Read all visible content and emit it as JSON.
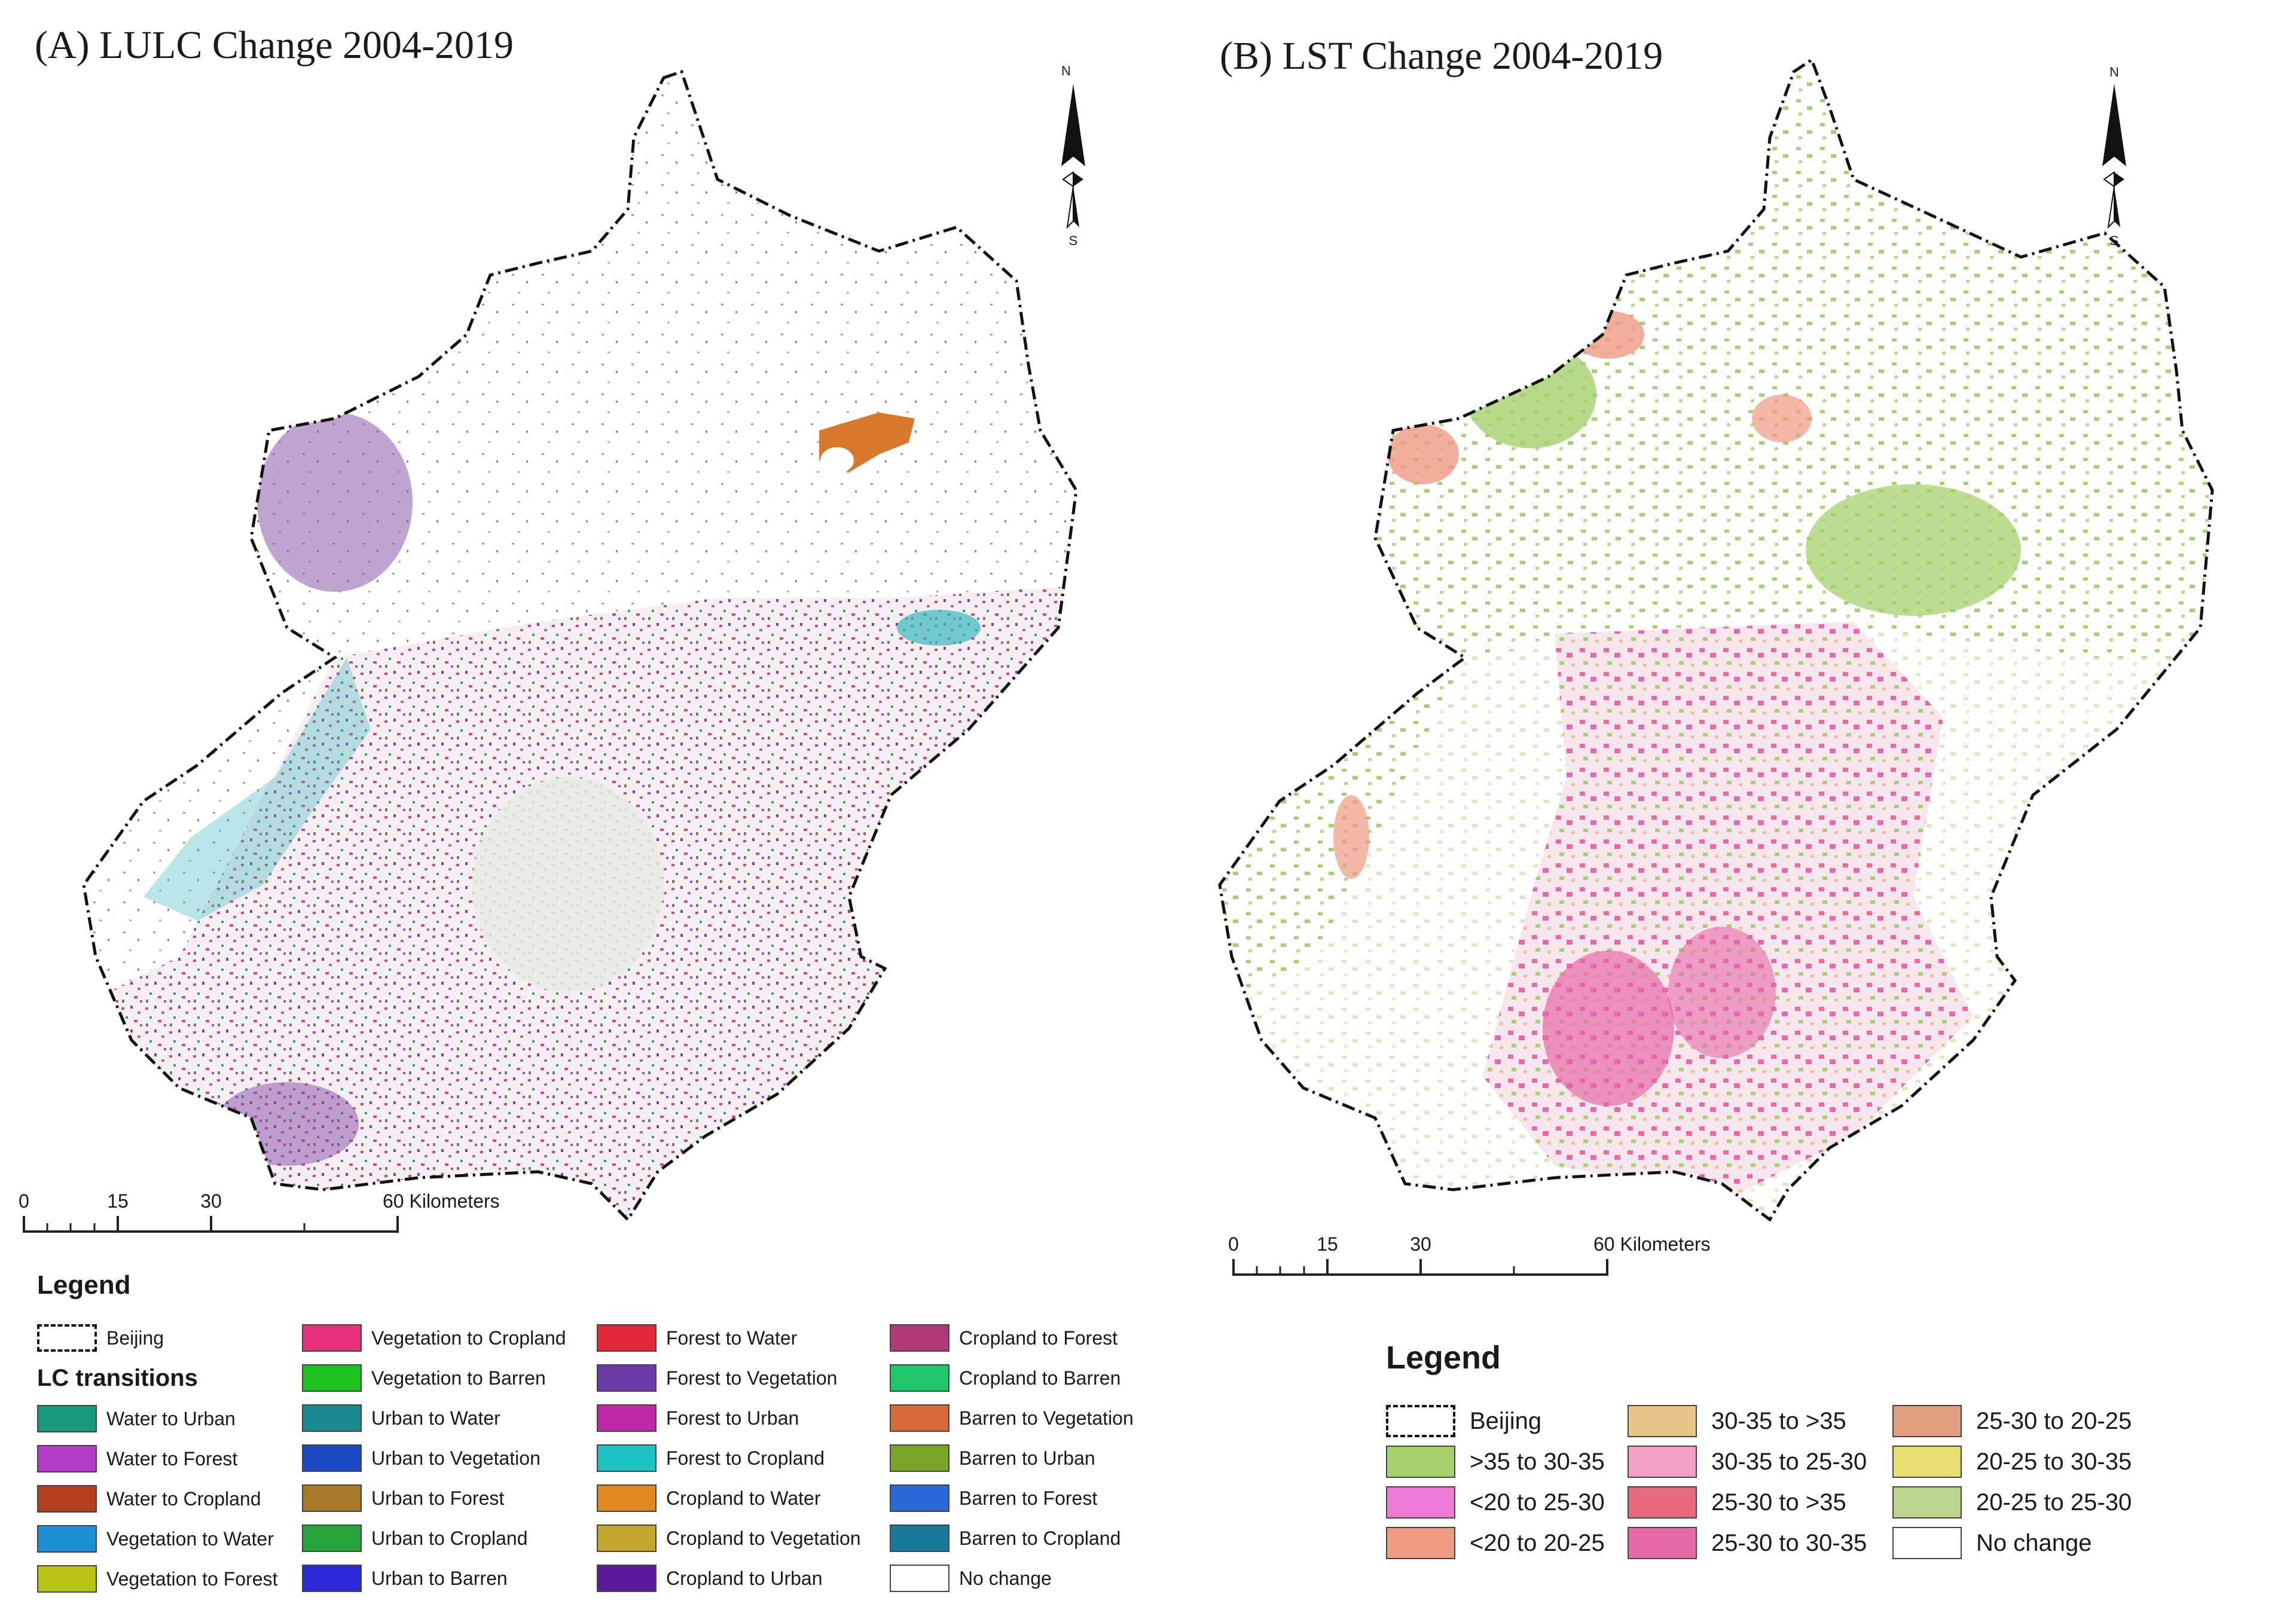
{
  "panel_a": {
    "title": "(A) LULC Change 2004-2019",
    "compass": {
      "north": "N",
      "south": "S"
    },
    "scale_bar": {
      "ticks": [
        "0",
        "15",
        "30",
        "60 Kilometers"
      ]
    },
    "legend": {
      "title": "Legend",
      "boundary_label": "Beijing",
      "transitions_title": "LC transitions",
      "items": [
        {
          "label": "Water to Urban",
          "color": "#1a9a7a"
        },
        {
          "label": "Water to Forest",
          "color": "#b03cc8"
        },
        {
          "label": "Water to Cropland",
          "color": "#b3401f"
        },
        {
          "label": "Vegetation to Water",
          "color": "#1f8fd6"
        },
        {
          "label": "Vegetation to Forest",
          "color": "#b8c414"
        },
        {
          "label": "Vegetation to Cropland",
          "color": "#e8317a"
        },
        {
          "label": "Vegetation to Barren",
          "color": "#1ec21e"
        },
        {
          "label": "Urban to Water",
          "color": "#17898f"
        },
        {
          "label": "Urban to Vegetation",
          "color": "#1b49c4"
        },
        {
          "label": "Urban to Forest",
          "color": "#a8782a"
        },
        {
          "label": "Urban to Cropland",
          "color": "#28a43c"
        },
        {
          "label": "Urban to Barren",
          "color": "#2a2ad6"
        },
        {
          "label": "Forest to Water",
          "color": "#e42a3a"
        },
        {
          "label": "Forest to Vegetation",
          "color": "#6a3aaa"
        },
        {
          "label": "Forest to Urban",
          "color": "#c02aa8"
        },
        {
          "label": "Forest to Cropland",
          "color": "#1ec2c2"
        },
        {
          "label": "Cropland to Water",
          "color": "#de8a1e"
        },
        {
          "label": "Cropland to Vegetation",
          "color": "#c4a830"
        },
        {
          "label": "Cropland to Urban",
          "color": "#5a1a9a"
        },
        {
          "label": "Cropland to Forest",
          "color": "#b03a78"
        },
        {
          "label": "Cropland to Barren",
          "color": "#1ec86a"
        },
        {
          "label": "Barren to Vegetation",
          "color": "#d86a3a"
        },
        {
          "label": "Barren to Urban",
          "color": "#7aa428"
        },
        {
          "label": "Barren to Forest",
          "color": "#2a6ad6"
        },
        {
          "label": "Barren to Cropland",
          "color": "#1a7a9a"
        },
        {
          "label": "No change",
          "color": "#ffffff"
        }
      ]
    }
  },
  "panel_b": {
    "title": "(B) LST Change 2004-2019",
    "compass": {
      "north": "N",
      "south": "S"
    },
    "scale_bar": {
      "ticks": [
        "0",
        "15",
        "30",
        "60 Kilometers"
      ]
    },
    "legend": {
      "title": "Legend",
      "boundary_label": "Beijing",
      "items": [
        {
          "label": ">35 to 30-35",
          "color": "#a6d26e"
        },
        {
          "label": "<20 to 25-30",
          "color": "#f07ad8"
        },
        {
          "label": "<20 to 20-25",
          "color": "#f09a82"
        },
        {
          "label": "30-35 to >35",
          "color": "#e8c68a"
        },
        {
          "label": "30-35 to 25-30",
          "color": "#f4a0c4"
        },
        {
          "label": "25-30 to >35",
          "color": "#e66a7e"
        },
        {
          "label": "25-30 to 30-35",
          "color": "#e66aa6"
        },
        {
          "label": "25-30 to 20-25",
          "color": "#e0a080"
        },
        {
          "label": "20-25 to 30-35",
          "color": "#e6de6e"
        },
        {
          "label": "20-25 to 25-30",
          "color": "#bcd68e"
        },
        {
          "label": "No change",
          "color": "#ffffff"
        }
      ]
    }
  }
}
